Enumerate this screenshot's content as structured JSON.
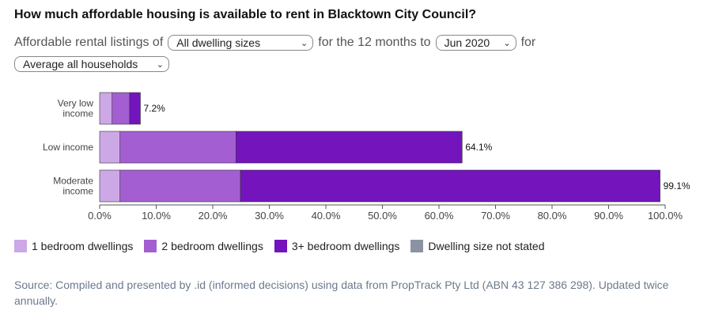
{
  "title": "How much affordable housing is available to rent in Blacktown City Council?",
  "controls": {
    "prefix": "Affordable rental listings of",
    "dwelling_select": "All dwelling sizes",
    "middle": "for the 12 months to",
    "period_select": "Jun 2020",
    "suffix": "for",
    "household_select": "Average all households"
  },
  "chart_data": {
    "type": "bar",
    "orientation": "horizontal",
    "stacked": true,
    "categories": [
      "Very low income",
      "Low income",
      "Moderate income"
    ],
    "category_lines": [
      [
        "Very low",
        "income"
      ],
      [
        "Low income"
      ],
      [
        "Moderate",
        "income"
      ]
    ],
    "series": [
      {
        "name": "1 bedroom dwellings",
        "color": "#cda8e6",
        "values": [
          2.2,
          3.6,
          3.6
        ]
      },
      {
        "name": "2 bedroom dwellings",
        "color": "#a35fd1",
        "values": [
          3.1,
          20.5,
          21.3
        ]
      },
      {
        "name": "3+ bedroom dwellings",
        "color": "#7414bd",
        "values": [
          1.9,
          40.0,
          74.2
        ]
      },
      {
        "name": "Dwelling size not stated",
        "color": "#8b93a3",
        "values": [
          0,
          0,
          0
        ]
      }
    ],
    "totals": [
      "7.2%",
      "64.1%",
      "99.1%"
    ],
    "totals_values": [
      7.2,
      64.1,
      99.1
    ],
    "xlim": [
      0,
      100
    ],
    "xticks": [
      0,
      10,
      20,
      30,
      40,
      50,
      60,
      70,
      80,
      90,
      100
    ],
    "xtick_labels": [
      "0.0%",
      "10.0%",
      "20.0%",
      "30.0%",
      "40.0%",
      "50.0%",
      "60.0%",
      "70.0%",
      "80.0%",
      "90.0%",
      "100.0%"
    ],
    "legend_position": "bottom-left",
    "grid": false
  },
  "source": "Source: Compiled and presented by .id (informed decisions) using data from PropTrack Pty Ltd (ABN 43 127 386 298). Updated twice annually."
}
